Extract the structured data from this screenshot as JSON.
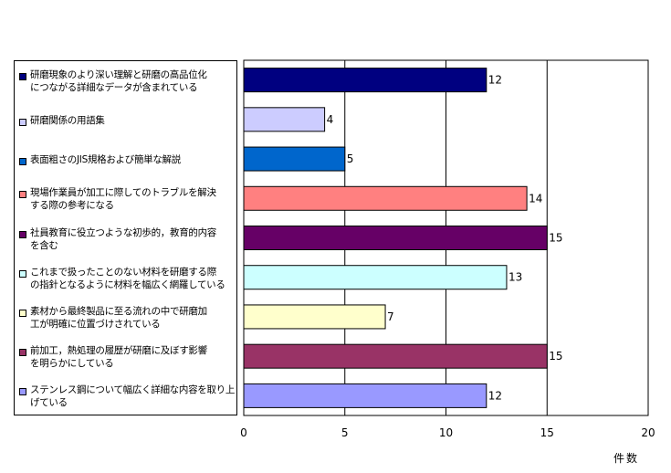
{
  "chart_data": {
    "type": "bar",
    "orientation": "horizontal",
    "xlabel": "件数",
    "xlim": [
      0,
      20
    ],
    "xticks": [
      0,
      5,
      10,
      15,
      20
    ],
    "grid": true,
    "legend_position": "left",
    "categories": [
      "研磨現象のより深い理解と研磨の高品位化\nにつながる詳細なデータが含まれている",
      "研磨関係の用語集",
      "表面粗さのJIS規格および簡単な解説",
      "現場作業員が加工に際してのトラブルを解決\nする際の参考になる",
      "社員教育に役立つような初歩的，教育的内容\nを含む",
      "これまで扱ったことのない材料を研磨する際\nの指針となるように材料を幅広く網羅している",
      "素材から最終製品に至る流れの中で研磨加\n工が明確に位置づけされている",
      "前加工，熱処理の履歴が研磨に及ぼす影響\nを明らかにしている",
      "ステンレス鋼について幅広く詳細な内容を取り上\nげている"
    ],
    "values": [
      12,
      4,
      5,
      14,
      15,
      13,
      7,
      15,
      12
    ],
    "colors": [
      "#000080",
      "#ccccff",
      "#0066cc",
      "#ff8080",
      "#660066",
      "#ccffff",
      "#ffffcc",
      "#993366",
      "#9999ff"
    ]
  }
}
